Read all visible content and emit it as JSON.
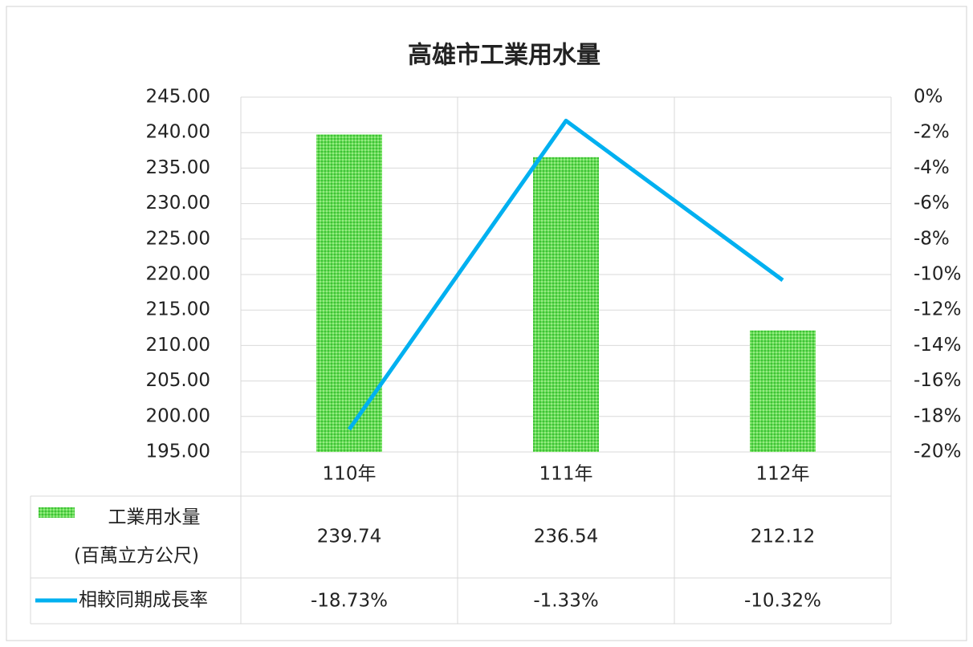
{
  "chart_data": {
    "type": "bar",
    "title": "高雄市工業用水量",
    "categories": [
      "110年",
      "111年",
      "112年"
    ],
    "series": [
      {
        "name": "工業用水量",
        "unit": "(百萬立方公尺)",
        "type": "bar",
        "color": "#33cc33",
        "values": [
          239.74,
          236.54,
          212.12
        ]
      },
      {
        "name": "相較同期成長率",
        "type": "line",
        "axis": "y2",
        "color": "#00b0f0",
        "values": [
          -18.73,
          -1.33,
          -10.32
        ],
        "value_labels": [
          "-18.73%",
          "-1.33%",
          "-10.32%"
        ]
      }
    ],
    "ylim": [
      195,
      245
    ],
    "yticks": [
      {
        "value": 195,
        "label": "195.00"
      },
      {
        "value": 200,
        "label": "200.00"
      },
      {
        "value": 205,
        "label": "205.00"
      },
      {
        "value": 210,
        "label": "210.00"
      },
      {
        "value": 215,
        "label": "215.00"
      },
      {
        "value": 220,
        "label": "220.00"
      },
      {
        "value": 225,
        "label": "225.00"
      },
      {
        "value": 230,
        "label": "230.00"
      },
      {
        "value": 235,
        "label": "235.00"
      },
      {
        "value": 240,
        "label": "240.00"
      },
      {
        "value": 245,
        "label": "245.00"
      }
    ],
    "y2lim": [
      -20,
      0
    ],
    "y2ticks": [
      {
        "value": 0,
        "label": "0%"
      },
      {
        "value": -2,
        "label": "-2%"
      },
      {
        "value": -4,
        "label": "-4%"
      },
      {
        "value": -6,
        "label": "-6%"
      },
      {
        "value": -8,
        "label": "-8%"
      },
      {
        "value": -10,
        "label": "-10%"
      },
      {
        "value": -12,
        "label": "-12%"
      },
      {
        "value": -14,
        "label": "-14%"
      },
      {
        "value": -16,
        "label": "-16%"
      },
      {
        "value": -18,
        "label": "-18%"
      },
      {
        "value": -20,
        "label": "-20%"
      }
    ],
    "grid": true
  }
}
